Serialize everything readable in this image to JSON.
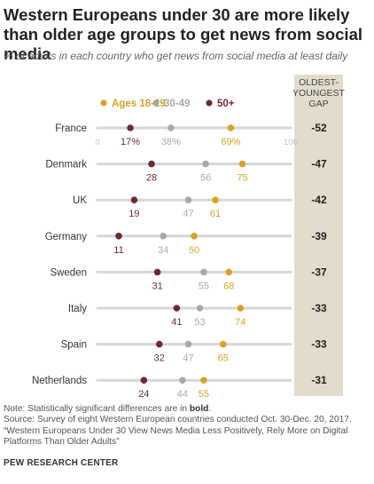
{
  "title": "Western Europeans under 30 are more likely than older age groups to get news from social media",
  "subtitle": "% of adults in each country who get news from social media at least daily",
  "gap_header": [
    "OLDEST-",
    "YOUNGEST",
    "GAP"
  ],
  "axis_min_label": "0",
  "axis_max_label": "100",
  "colors": {
    "young": "#d9a227",
    "mid": "#a9a9a9",
    "old": "#6e2a32",
    "track": "#d6d6d6",
    "gap_bg": "#e1dccb"
  },
  "chart_data": {
    "type": "dot",
    "xlim": [
      0,
      100
    ],
    "series": [
      {
        "name": "Ages 18-29",
        "key": "young"
      },
      {
        "name": "30-49",
        "key": "mid"
      },
      {
        "name": "50+",
        "key": "old"
      }
    ],
    "rows": [
      {
        "country": "France",
        "old": 17,
        "mid": 38,
        "young": 69,
        "gap": -52,
        "labels": {
          "old": "17%",
          "mid": "38%",
          "young": "69%"
        }
      },
      {
        "country": "Denmark",
        "old": 28,
        "mid": 56,
        "young": 75,
        "gap": -47
      },
      {
        "country": "UK",
        "old": 19,
        "mid": 47,
        "young": 61,
        "gap": -42
      },
      {
        "country": "Germany",
        "old": 11,
        "mid": 34,
        "young": 50,
        "gap": -39
      },
      {
        "country": "Sweden",
        "old": 31,
        "mid": 55,
        "young": 68,
        "gap": -37
      },
      {
        "country": "Italy",
        "old": 41,
        "mid": 53,
        "young": 74,
        "gap": -33
      },
      {
        "country": "Spain",
        "old": 32,
        "mid": 47,
        "young": 65,
        "gap": -33
      },
      {
        "country": "Netherlands",
        "old": 24,
        "mid": 44,
        "young": 55,
        "gap": -31
      }
    ]
  },
  "notes": {
    "note_prefix": "Note: Statistically significant differences are in ",
    "note_bold": "bold",
    "note_suffix": ".",
    "source": "Source: Survey of eight Western European countries conducted Oct. 30-Dec. 20, 2017.",
    "report": "“Western Europeans Under 30 View News Media Less Positively, Rely More on Digital Platforms Than Older Adults”"
  },
  "org": "PEW RESEARCH CENTER"
}
